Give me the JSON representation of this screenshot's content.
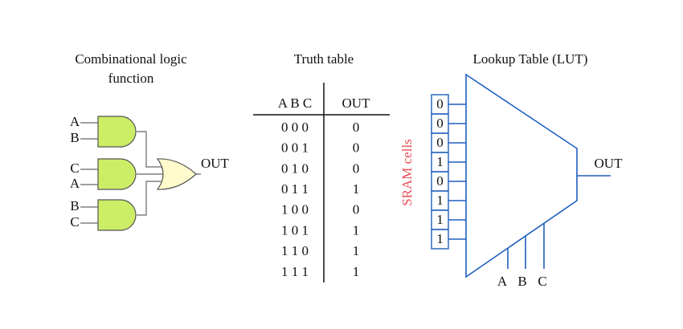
{
  "combinational": {
    "title_lines": [
      "Combinational logic",
      "function"
    ],
    "gates": [
      {
        "inputs": [
          "A",
          "B"
        ]
      },
      {
        "inputs": [
          "C",
          "A"
        ]
      },
      {
        "inputs": [
          "B",
          "C"
        ]
      }
    ],
    "output": "OUT"
  },
  "truth_table": {
    "title": "Truth table",
    "headers": [
      "A B C",
      "OUT"
    ],
    "rows": [
      [
        "0 0 0",
        "0"
      ],
      [
        "0 0 1",
        "0"
      ],
      [
        "0 1 0",
        "0"
      ],
      [
        "0 1 1",
        "1"
      ],
      [
        "1 0 0",
        "0"
      ],
      [
        "1 0 1",
        "1"
      ],
      [
        "1 1 0",
        "1"
      ],
      [
        "1 1 1",
        "1"
      ]
    ]
  },
  "lut": {
    "title": "Lookup Table (LUT)",
    "side_label": "SRAM cells",
    "cells": [
      "0",
      "0",
      "0",
      "1",
      "0",
      "1",
      "1",
      "1"
    ],
    "output": "OUT",
    "selects": [
      "A",
      "B",
      "C"
    ]
  }
}
